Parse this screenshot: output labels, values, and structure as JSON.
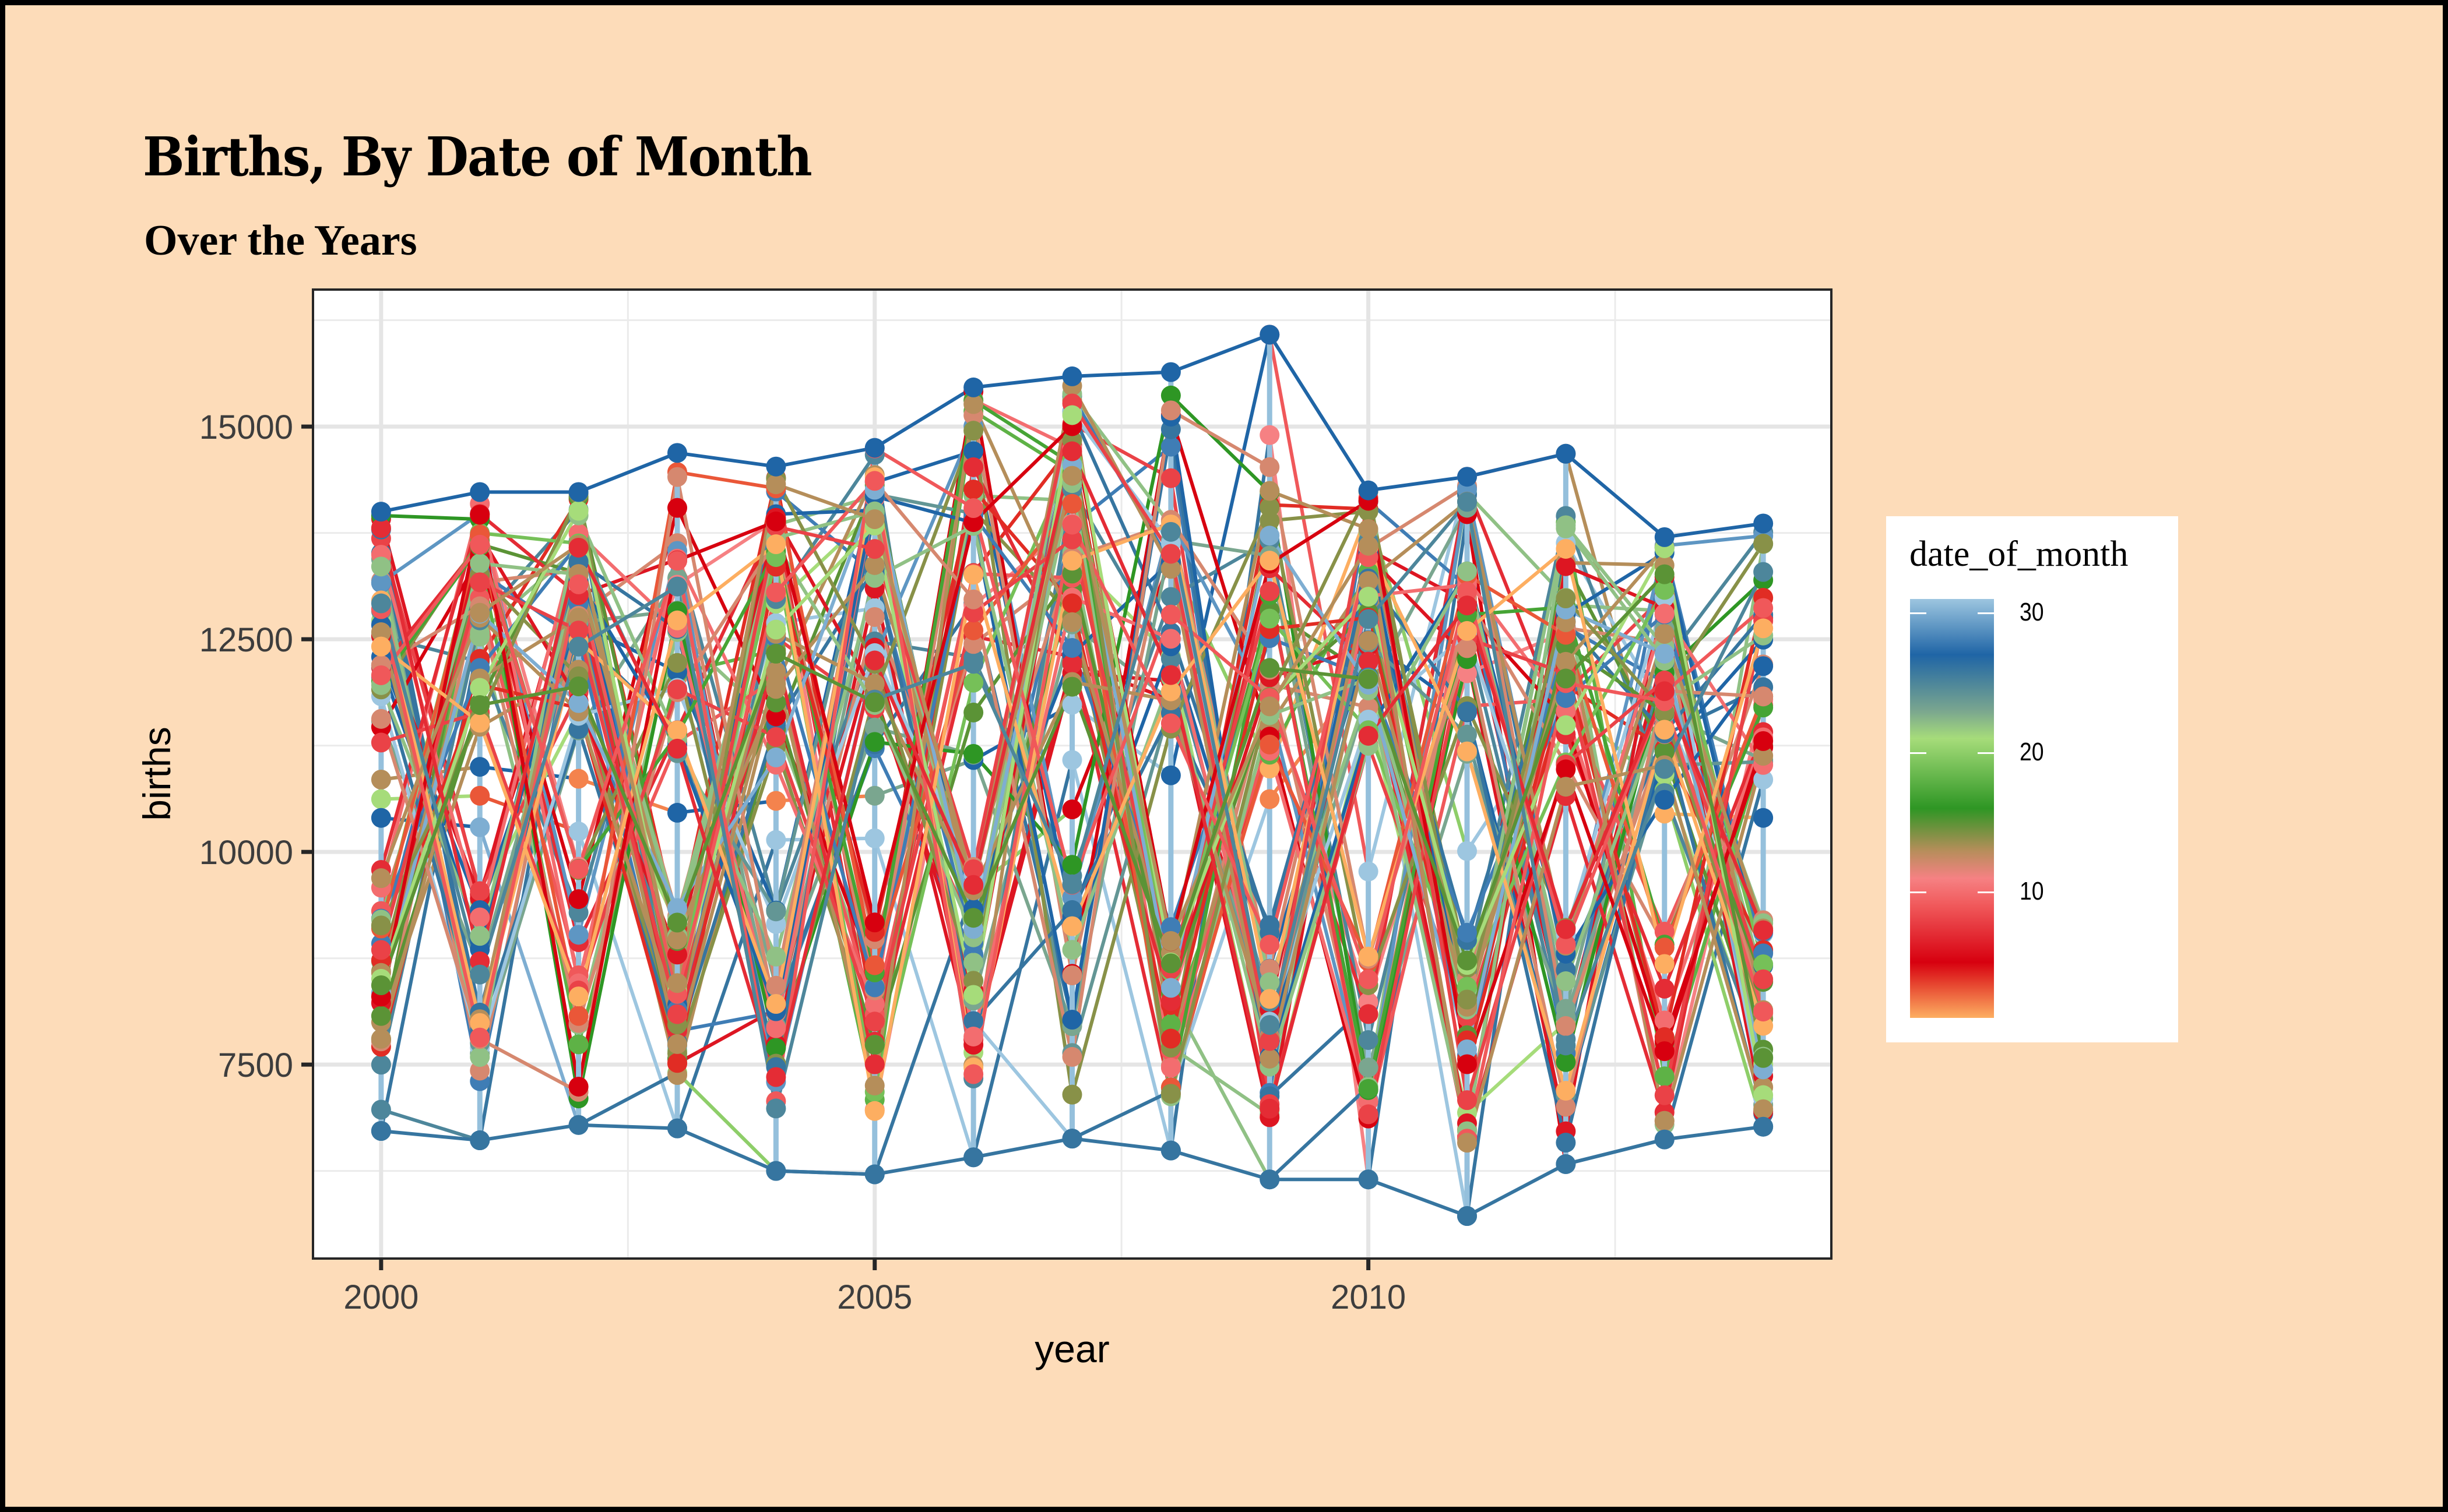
{
  "chart_data": {
    "type": "line",
    "title": "Births, By Date of Month",
    "subtitle": "Over the Years",
    "xlabel": "year",
    "ylabel": "births",
    "x_ticks": [
      2000,
      2005,
      2010
    ],
    "x_tick_labels": [
      "2000",
      "2005",
      "2010"
    ],
    "y_ticks": [
      7500,
      10000,
      12500,
      15000
    ],
    "y_tick_labels": [
      "7500",
      "10000",
      "12500",
      "15000"
    ],
    "y_minor_ticks": [
      6250,
      8750,
      11250,
      13750,
      16250
    ],
    "x_minor_ticks": [
      2002.5,
      2007.5,
      2012.5
    ],
    "xlim": [
      1999.31,
      2014.69
    ],
    "ylim": [
      5220,
      16610
    ],
    "grid": true,
    "legend": {
      "title": "date_of_month",
      "type": "colorbar",
      "placement": "right",
      "range": [
        1,
        31
      ],
      "ticks": [
        10,
        20,
        30
      ],
      "tick_labels": [
        "10",
        "20",
        "30"
      ],
      "color_stops": [
        {
          "value": 1,
          "color": "#fdae61"
        },
        {
          "value": 5,
          "color": "#d7000f"
        },
        {
          "value": 9,
          "color": "#f0585a"
        },
        {
          "value": 11,
          "color": "#f68183"
        },
        {
          "value": 13,
          "color": "#b58e5a"
        },
        {
          "value": 16,
          "color": "#2e9624"
        },
        {
          "value": 21,
          "color": "#a6dc7a"
        },
        {
          "value": 23,
          "color": "#7aa68f"
        },
        {
          "value": 27,
          "color": "#1f65a6"
        },
        {
          "value": 31,
          "color": "#9dc6e0"
        }
      ]
    },
    "series_description": "One point per calendar day (month x date_of_month) per year; lines connect the same calendar day across consecutive years; color encodes date_of_month",
    "years": [
      {
        "year": 2000,
        "max": 14000,
        "min": 6720,
        "high_cluster": [
          11200,
          14000
        ],
        "low_cluster": [
          7480,
          9850
        ],
        "isolated": [
          [
            13,
            10850
          ],
          [
            21,
            10620
          ],
          [
            27,
            10400
          ],
          [
            25,
            6970
          ],
          [
            26,
            6720
          ]
        ]
      },
      {
        "year": 2001,
        "max": 14230,
        "min": 6610,
        "high_cluster": [
          11400,
          14230
        ],
        "low_cluster": [
          7230,
          9560
        ],
        "isolated": [
          [
            27,
            11000
          ],
          [
            3,
            10660
          ],
          [
            30,
            10290
          ],
          [
            26,
            6610
          ]
        ]
      },
      {
        "year": 2002,
        "max": 14230,
        "min": 6790,
        "high_cluster": [
          11300,
          14230
        ],
        "low_cluster": [
          7090,
          9850
        ],
        "isolated": [
          [
            2,
            10860
          ],
          [
            31,
            10240
          ],
          [
            26,
            6790
          ]
        ]
      },
      {
        "year": 2003,
        "max": 14690,
        "min": 6750,
        "high_cluster": [
          11100,
          14690
        ],
        "low_cluster": [
          7350,
          9420
        ],
        "isolated": [
          [
            27,
            10460
          ],
          [
            26,
            6750
          ]
        ]
      },
      {
        "year": 2004,
        "max": 14530,
        "min": 6250,
        "high_cluster": [
          11000,
          14530
        ],
        "low_cluster": [
          6970,
          9400
        ],
        "isolated": [
          [
            2,
            10600
          ],
          [
            31,
            10140
          ],
          [
            26,
            6250
          ]
        ]
      },
      {
        "year": 2005,
        "max": 14750,
        "min": 6210,
        "high_cluster": [
          11200,
          14750
        ],
        "low_cluster": [
          6900,
          9560
        ],
        "isolated": [
          [
            23,
            10660
          ],
          [
            31,
            10160
          ],
          [
            26,
            6210
          ]
        ]
      },
      {
        "year": 2006,
        "max": 15460,
        "min": 6410,
        "high_cluster": [
          11100,
          15460
        ],
        "low_cluster": [
          7000,
          9850
        ],
        "isolated": [
          [
            27,
            11080
          ],
          [
            26,
            6410
          ]
        ]
      },
      {
        "year": 2007,
        "max": 15590,
        "min": 6630,
        "high_cluster": [
          11900,
          15590
        ],
        "low_cluster": [
          6910,
          9950
        ],
        "isolated": [
          [
            31,
            11730
          ],
          [
            31,
            11080
          ],
          [
            5,
            10500
          ],
          [
            26,
            6630
          ]
        ]
      },
      {
        "year": 2008,
        "max": 15640,
        "min": 6490,
        "high_cluster": [
          11300,
          15640
        ],
        "low_cluster": [
          7100,
          9300
        ],
        "isolated": [
          [
            27,
            10900
          ],
          [
            26,
            6490
          ]
        ]
      },
      {
        "year": 2009,
        "max": 16080,
        "min": 6150,
        "high_cluster": [
          11100,
          14600
        ],
        "low_cluster": [
          6880,
          9250
        ],
        "isolated": [
          [
            9,
            16080
          ],
          [
            11,
            14900
          ],
          [
            1,
            10980
          ],
          [
            2,
            10620
          ],
          [
            26,
            6150
          ]
        ]
      },
      {
        "year": 2010,
        "max": 14250,
        "min": 6150,
        "high_cluster": [
          11200,
          14250
        ],
        "low_cluster": [
          6820,
          8970
        ],
        "isolated": [
          [
            31,
            9770
          ],
          [
            26,
            6150
          ]
        ]
      },
      {
        "year": 2011,
        "max": 14410,
        "min": 5720,
        "high_cluster": [
          11000,
          14410
        ],
        "low_cluster": [
          6560,
          9120
        ],
        "isolated": [
          [
            11,
            14410
          ],
          [
            5,
            13970
          ],
          [
            31,
            10010
          ],
          [
            26,
            5720
          ]
        ]
      },
      {
        "year": 2012,
        "max": 14680,
        "min": 6330,
        "high_cluster": [
          10650,
          14140
        ],
        "low_cluster": [
          6500,
          9300
        ],
        "isolated": [
          [
            13,
            14680
          ],
          [
            26,
            6330
          ]
        ]
      },
      {
        "year": 2013,
        "max": 13700,
        "min": 6620,
        "high_cluster": [
          10450,
          13700
        ],
        "low_cluster": [
          6620,
          9220
        ],
        "isolated": [
          [
            1,
            10450
          ],
          [
            26,
            6620
          ]
        ]
      },
      {
        "year": 2014,
        "max": 13860,
        "min": 6770,
        "high_cluster": [
          11000,
          13860
        ],
        "low_cluster": [
          6780,
          9300
        ],
        "isolated": [
          [
            27,
            10400
          ],
          [
            31,
            10850
          ],
          [
            26,
            6770
          ]
        ]
      }
    ]
  }
}
